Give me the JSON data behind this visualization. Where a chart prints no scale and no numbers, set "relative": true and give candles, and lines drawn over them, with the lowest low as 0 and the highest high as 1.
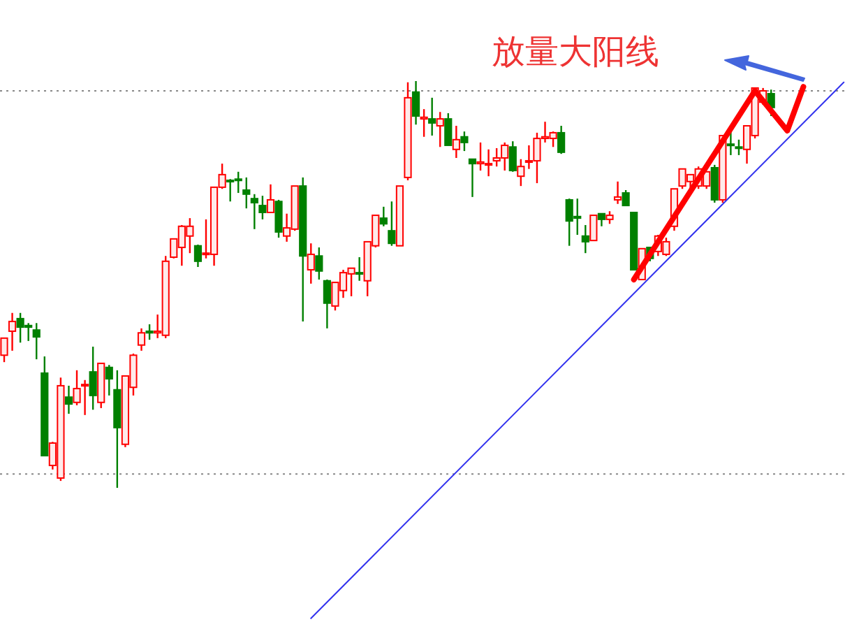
{
  "chart_data": {
    "type": "candlestick",
    "relative": true,
    "annotations": [
      "放量大阳线"
    ],
    "categories": [
      null,
      null,
      null,
      null,
      null,
      null,
      null,
      null,
      null,
      null,
      null,
      null,
      null,
      null,
      null,
      null,
      null,
      null,
      null,
      null,
      null,
      null,
      null,
      null,
      null,
      null,
      null,
      null,
      null,
      null,
      null,
      null,
      null,
      null,
      null,
      null,
      null,
      null,
      null,
      null,
      null,
      null,
      null,
      null,
      null,
      null,
      null,
      null,
      null,
      null,
      null,
      null,
      null,
      null,
      null,
      null,
      null,
      null,
      null,
      null,
      null,
      null,
      null,
      null,
      null,
      null,
      null,
      null,
      null,
      null,
      null,
      null,
      null,
      null,
      null,
      null,
      null,
      null,
      null,
      null,
      null,
      null,
      null,
      null,
      null,
      null,
      null,
      null,
      null,
      null,
      null,
      null,
      null,
      null,
      null,
      null,
      null,
      null,
      null,
      null,
      null,
      null,
      null,
      null,
      null
    ],
    "ohlc": [
      [
        0.326,
        0.368,
        0.309,
        0.368
      ],
      [
        0.385,
        0.43,
        0.337,
        0.409
      ],
      [
        0.416,
        0.43,
        0.357,
        0.395
      ],
      [
        0.399,
        0.405,
        0.361,
        0.395
      ],
      [
        0.388,
        0.405,
        0.316,
        0.371
      ],
      [
        0.282,
        0.323,
        0.079,
        0.079
      ],
      [
        0.055,
        0.113,
        0.045,
        0.11
      ],
      [
        0.024,
        0.271,
        0.017,
        0.251
      ],
      [
        0.223,
        0.251,
        0.182,
        0.206
      ],
      [
        0.21,
        0.289,
        0.203,
        0.244
      ],
      [
        0.251,
        0.265,
        0.179,
        0.254
      ],
      [
        0.285,
        0.347,
        0.192,
        0.227
      ],
      [
        0.21,
        0.306,
        0.196,
        0.306
      ],
      [
        0.296,
        0.302,
        0.227,
        0.268
      ],
      [
        0.241,
        0.289,
        0.0,
        0.148
      ],
      [
        0.107,
        0.275,
        0.1,
        0.275
      ],
      [
        0.247,
        0.33,
        0.227,
        0.326
      ],
      [
        0.351,
        0.392,
        0.337,
        0.381
      ],
      [
        0.385,
        0.402,
        0.364,
        0.381
      ],
      [
        0.381,
        0.426,
        0.368,
        0.385
      ],
      [
        0.375,
        0.57,
        0.368,
        0.557
      ],
      [
        0.567,
        0.612,
        0.564,
        0.612
      ],
      [
        0.591,
        0.646,
        0.546,
        0.643
      ],
      [
        0.619,
        0.663,
        0.577,
        0.643
      ],
      [
        0.595,
        0.598,
        0.543,
        0.557
      ],
      [
        0.574,
        0.66,
        0.564,
        0.577
      ],
      [
        0.574,
        0.739,
        0.546,
        0.739
      ],
      [
        0.739,
        0.797,
        0.735,
        0.77
      ],
      [
        0.756,
        0.759,
        0.704,
        0.753
      ],
      [
        0.759,
        0.777,
        0.725,
        0.756
      ],
      [
        0.732,
        0.763,
        0.687,
        0.722
      ],
      [
        0.711,
        0.722,
        0.636,
        0.701
      ],
      [
        0.694,
        0.718,
        0.66,
        0.677
      ],
      [
        0.677,
        0.746,
        0.677,
        0.708
      ],
      [
        0.704,
        0.708,
        0.615,
        0.629
      ],
      [
        0.619,
        0.674,
        0.605,
        0.639
      ],
      [
        0.636,
        0.742,
        0.632,
        0.742
      ],
      [
        0.742,
        0.763,
        0.409,
        0.57
      ],
      [
        0.536,
        0.601,
        0.502,
        0.574
      ],
      [
        0.57,
        0.591,
        0.512,
        0.533
      ],
      [
        0.509,
        0.512,
        0.392,
        0.454
      ],
      [
        0.447,
        0.505,
        0.436,
        0.505
      ],
      [
        0.485,
        0.536,
        0.467,
        0.529
      ],
      [
        0.526,
        0.54,
        0.471,
        0.54
      ],
      [
        0.529,
        0.567,
        0.509,
        0.526
      ],
      [
        0.509,
        0.605,
        0.471,
        0.605
      ],
      [
        0.595,
        0.67,
        0.591,
        0.67
      ],
      [
        0.663,
        0.691,
        0.643,
        0.649
      ],
      [
        0.632,
        0.704,
        0.595,
        0.601
      ],
      [
        0.595,
        0.742,
        0.595,
        0.742
      ],
      [
        0.763,
        0.997,
        0.756,
        0.959
      ],
      [
        0.973,
        1.0,
        0.893,
        0.914
      ],
      [
        0.907,
        0.931,
        0.863,
        0.911
      ],
      [
        0.907,
        0.959,
        0.866,
        0.897
      ],
      [
        0.89,
        0.924,
        0.838,
        0.907
      ],
      [
        0.907,
        0.921,
        0.842,
        0.842
      ],
      [
        0.832,
        0.89,
        0.811,
        0.856
      ],
      [
        0.863,
        0.876,
        0.828,
        0.849
      ],
      [
        0.808,
        0.808,
        0.715,
        0.797
      ],
      [
        0.797,
        0.849,
        0.78,
        0.801
      ],
      [
        0.794,
        0.832,
        0.766,
        0.797
      ],
      [
        0.804,
        0.835,
        0.79,
        0.811
      ],
      [
        0.811,
        0.849,
        0.78,
        0.842
      ],
      [
        0.838,
        0.852,
        0.777,
        0.78
      ],
      [
        0.766,
        0.808,
        0.742,
        0.79
      ],
      [
        0.801,
        0.842,
        0.784,
        0.804
      ],
      [
        0.804,
        0.873,
        0.749,
        0.859
      ],
      [
        0.859,
        0.9,
        0.849,
        0.863
      ],
      [
        0.859,
        0.876,
        0.838,
        0.873
      ],
      [
        0.873,
        0.89,
        0.821,
        0.825
      ],
      [
        0.708,
        0.711,
        0.595,
        0.656
      ],
      [
        0.667,
        0.711,
        0.622,
        0.663
      ],
      [
        0.619,
        0.646,
        0.577,
        0.605
      ],
      [
        0.608,
        0.67,
        0.608,
        0.67
      ],
      [
        0.674,
        0.674,
        0.643,
        0.66
      ],
      [
        0.66,
        0.68,
        0.649,
        0.67
      ],
      [
        0.708,
        0.753,
        0.698,
        0.715
      ],
      [
        0.725,
        0.732,
        0.694,
        0.694
      ],
      [
        0.677,
        0.677,
        0.536,
        0.536
      ],
      [
        0.512,
        0.588,
        0.512,
        0.588
      ],
      [
        0.591,
        0.591,
        0.557,
        0.564
      ],
      [
        0.581,
        0.622,
        0.57,
        0.619
      ],
      [
        0.574,
        0.615,
        0.57,
        0.605
      ],
      [
        0.643,
        0.735,
        0.632,
        0.735
      ],
      [
        0.742,
        0.784,
        0.735,
        0.784
      ],
      [
        0.753,
        0.77,
        0.735,
        0.77
      ],
      [
        0.742,
        0.79,
        0.735,
        0.784
      ],
      [
        0.742,
        0.777,
        0.735,
        0.777
      ],
      [
        0.787,
        0.794,
        0.701,
        0.708
      ],
      [
        0.708,
        0.866,
        0.701,
        0.866
      ],
      [
        0.845,
        0.88,
        0.818,
        0.842
      ],
      [
        0.838,
        0.856,
        0.818,
        0.835
      ],
      [
        0.832,
        0.89,
        0.797,
        0.89
      ],
      [
        0.866,
        0.983,
        0.859,
        0.983
      ],
      [
        0.948,
        0.983,
        0.942,
        0.976
      ],
      [
        0.969,
        0.979,
        0.914,
        0.935
      ],
      null,
      null,
      null,
      null,
      null,
      null,
      null,
      null,
      null
    ],
    "colors": [
      "#ff0000",
      "#ff0000",
      "#008000",
      "#008000",
      "#008000",
      "#008000",
      "#ff0000",
      "#ff0000",
      "#008000",
      "#ff0000",
      "#ff0000",
      "#008000",
      "#ff0000",
      "#008000",
      "#008000",
      "#ff0000",
      "#ff0000",
      "#ff0000",
      "#008000",
      "#ff0000",
      "#ff0000",
      "#ff0000",
      "#ff0000",
      "#ff0000",
      "#008000",
      "#ff0000",
      "#ff0000",
      "#ff0000",
      "#008000",
      "#008000",
      "#008000",
      "#008000",
      "#008000",
      "#ff0000",
      "#008000",
      "#ff0000",
      "#ff0000",
      "#008000",
      "#ff0000",
      "#008000",
      "#008000",
      "#ff0000",
      "#ff0000",
      "#ff0000",
      "#008000",
      "#ff0000",
      "#ff0000",
      "#008000",
      "#008000",
      "#ff0000",
      "#ff0000",
      "#008000",
      "#ff0000",
      "#008000",
      "#ff0000",
      "#008000",
      "#ff0000",
      "#008000",
      "#008000",
      "#ff0000",
      "#ff0000",
      "#ff0000",
      "#ff0000",
      "#008000",
      "#ff0000",
      "#ff0000",
      "#ff0000",
      "#ff0000",
      "#ff0000",
      "#008000",
      "#008000",
      "#008000",
      "#008000",
      "#ff0000",
      "#008000",
      "#ff0000",
      "#ff0000",
      "#008000",
      "#008000",
      "#ff0000",
      "#008000",
      "#ff0000",
      "#ff0000",
      "#ff0000",
      "#ff0000",
      "#ff0000",
      "#ff0000",
      "#ff0000",
      "#008000",
      "#ff0000",
      "#008000",
      "#008000",
      "#ff0000",
      "#ff0000",
      "#ff0000",
      "#008000",
      null,
      null,
      null,
      null,
      null,
      null,
      null,
      null,
      null
    ],
    "series": [
      {
        "type": "line",
        "color": "#3333ee",
        "values": [
          null,
          null,
          null,
          null,
          null,
          null,
          null,
          null,
          null,
          null,
          null,
          null,
          null,
          null,
          null,
          null,
          null,
          null,
          null,
          null,
          null,
          null,
          null,
          null,
          null,
          null,
          null,
          null,
          null,
          null,
          null,
          null,
          null,
          null,
          null,
          null,
          null,
          null,
          -0.321,
          null,
          null,
          null,
          null,
          null,
          null,
          null,
          null,
          null,
          null,
          null,
          null,
          null,
          null,
          null,
          null,
          null,
          null,
          null,
          null,
          null,
          null,
          null,
          null,
          null,
          null,
          null,
          null,
          null,
          null,
          null,
          null,
          null,
          null,
          null,
          null,
          null,
          null,
          null,
          null,
          null,
          null,
          null,
          null,
          null,
          null,
          null,
          null,
          null,
          null,
          null,
          null,
          null,
          null,
          null,
          null,
          null,
          null,
          null,
          null,
          null,
          null,
          null,
          null,
          null,
          0.997
        ]
      },
      {
        "type": "line",
        "color": "#ff0000",
        "values": [
          null,
          null,
          null,
          null,
          null,
          null,
          null,
          null,
          null,
          null,
          null,
          null,
          null,
          null,
          null,
          null,
          null,
          null,
          null,
          null,
          null,
          null,
          null,
          null,
          null,
          null,
          null,
          null,
          null,
          null,
          null,
          null,
          null,
          null,
          null,
          null,
          null,
          null,
          null,
          null,
          null,
          null,
          null,
          null,
          null,
          null,
          null,
          null,
          null,
          null,
          null,
          null,
          null,
          null,
          null,
          null,
          null,
          null,
          null,
          null,
          null,
          null,
          null,
          null,
          null,
          null,
          null,
          null,
          null,
          null,
          null,
          null,
          null,
          null,
          null,
          null,
          null,
          null,
          0.512,
          null,
          null,
          null,
          null,
          null,
          null,
          null,
          null,
          null,
          null,
          null,
          null,
          null,
          null,
          0.976,
          null,
          null,
          null,
          0.878,
          null,
          0.986,
          null,
          null,
          null,
          null,
          null
        ]
      }
    ],
    "ref_lines": [
      {
        "axis": "y",
        "value": 0.976,
        "color": "#888888",
        "line_style": "dotted"
      },
      {
        "axis": "y",
        "value": 0.034,
        "color": "#888888",
        "line_style": "dotted"
      }
    ]
  }
}
